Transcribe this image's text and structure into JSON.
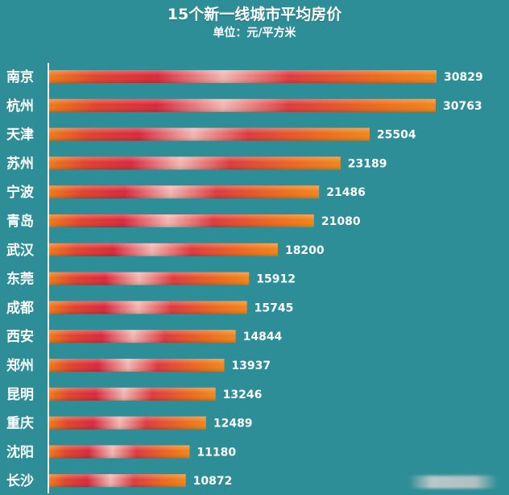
{
  "chart_data": {
    "type": "bar",
    "orientation": "horizontal",
    "title": "15个新一线城市平均房价",
    "subtitle": "单位：元/平方米",
    "categories": [
      "南京",
      "杭州",
      "天津",
      "苏州",
      "宁波",
      "青岛",
      "武汉",
      "东莞",
      "成都",
      "西安",
      "郑州",
      "昆明",
      "重庆",
      "沈阳",
      "长沙"
    ],
    "values": [
      30829,
      30763,
      25504,
      23189,
      21486,
      21080,
      18200,
      15912,
      15745,
      14844,
      13937,
      13246,
      12489,
      11180,
      10872
    ],
    "xlim": [
      0,
      31000
    ],
    "xlabel": "",
    "ylabel": "",
    "grid": false,
    "legend": "none"
  },
  "colors": {
    "background": "#2e8e97",
    "bar_edge": "#f07a16",
    "bar_mid": "#d8283a",
    "bar_highlight": "#f2b5b0",
    "axis_line": "#ffffff",
    "text": "#ffffff"
  }
}
